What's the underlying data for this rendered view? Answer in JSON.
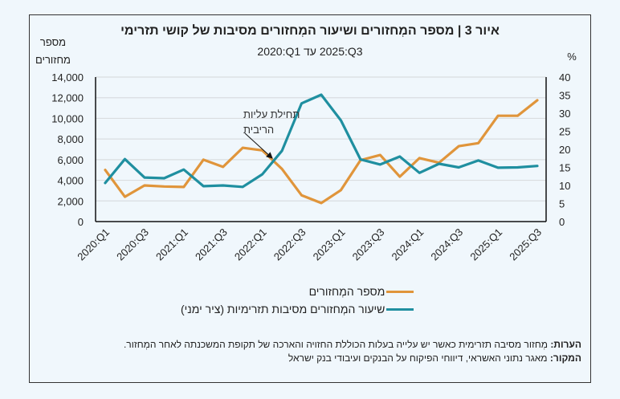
{
  "figure": {
    "title": "איור 3 | מספר המְחזורים ושיעור המְחזורים מסיבות של קושי תזרימי",
    "subtitle_from": "2020:Q1",
    "subtitle_to": "2025:Q3",
    "subtitle_connector": "עד",
    "notes_label": "הערות:",
    "notes_text": "מְחזור מסיבה תזרימית כאשר יש עלייה בעלות הכוללת החזויה והארכה של תקופת המשכנתה לאחר המְחזור.",
    "source_label": "המקור:",
    "source_text": "מאגר נתוני האשראי, דיווחי הפיקוח על הבנקים ועיבודי בנק ישראל"
  },
  "chart_data": {
    "type": "line",
    "title": "איור 3 | מספר המְחזורים ושיעור המְחזורים מסיבות של קושי תזרימי",
    "subtitle": "2020:Q1 עד 2025:Q3",
    "x": [
      "2020:Q1",
      "2020:Q2",
      "2020:Q3",
      "2020:Q4",
      "2021:Q1",
      "2021:Q2",
      "2021:Q3",
      "2021:Q4",
      "2022:Q1",
      "2022:Q2",
      "2022:Q3",
      "2022:Q4",
      "2023:Q1",
      "2023:Q2",
      "2023:Q3",
      "2023:Q4",
      "2024:Q1",
      "2024:Q2",
      "2024:Q3",
      "2024:Q4",
      "2025:Q1",
      "2025:Q2",
      "2025:Q3"
    ],
    "x_tick_labels": [
      "2020:Q1",
      "2020:Q3",
      "2021:Q1",
      "2021:Q3",
      "2022:Q1",
      "2022:Q3",
      "2023:Q1",
      "2023:Q3",
      "2024:Q1",
      "2024:Q3",
      "2025:Q1",
      "2025:Q3"
    ],
    "ylabel_left": "מספר מחזורים",
    "ylabel_right": "%",
    "ylim_left": [
      0,
      14000
    ],
    "ylim_right": [
      0,
      40
    ],
    "yticks_left": [
      "0",
      "2,000",
      "4,000",
      "6,000",
      "8,000",
      "10,000",
      "12,000",
      "14,000"
    ],
    "yticks_right": [
      "0",
      "5",
      "10",
      "15",
      "20",
      "25",
      "30",
      "35",
      "40"
    ],
    "grid": true,
    "legend_position": "bottom",
    "series": [
      {
        "name": "מספר המְחזורים",
        "axis": "left",
        "color": "#e0953b",
        "values": [
          5000,
          2400,
          3500,
          3400,
          3350,
          6000,
          5300,
          7150,
          6900,
          5100,
          2550,
          1800,
          3050,
          5950,
          6450,
          4350,
          6150,
          5700,
          7300,
          7600,
          10250,
          10250,
          11750
        ]
      },
      {
        "name": "שיעור המְחזורים מסיבות תזרימיות (ציר ימני)",
        "axis": "right",
        "color": "#1f8fa0",
        "values": [
          10.7,
          17.3,
          12.2,
          12.0,
          14.4,
          9.8,
          10.0,
          9.6,
          13.1,
          19.6,
          32.7,
          35.1,
          28.0,
          17.2,
          15.8,
          18.0,
          13.5,
          16.0,
          15.0,
          16.9,
          14.9,
          15.0,
          15.4
        ]
      }
    ],
    "annotations": [
      {
        "text_line1": "תחילת עליות",
        "text_line2": "הריבית",
        "points_to": "2022:Q2"
      }
    ]
  }
}
